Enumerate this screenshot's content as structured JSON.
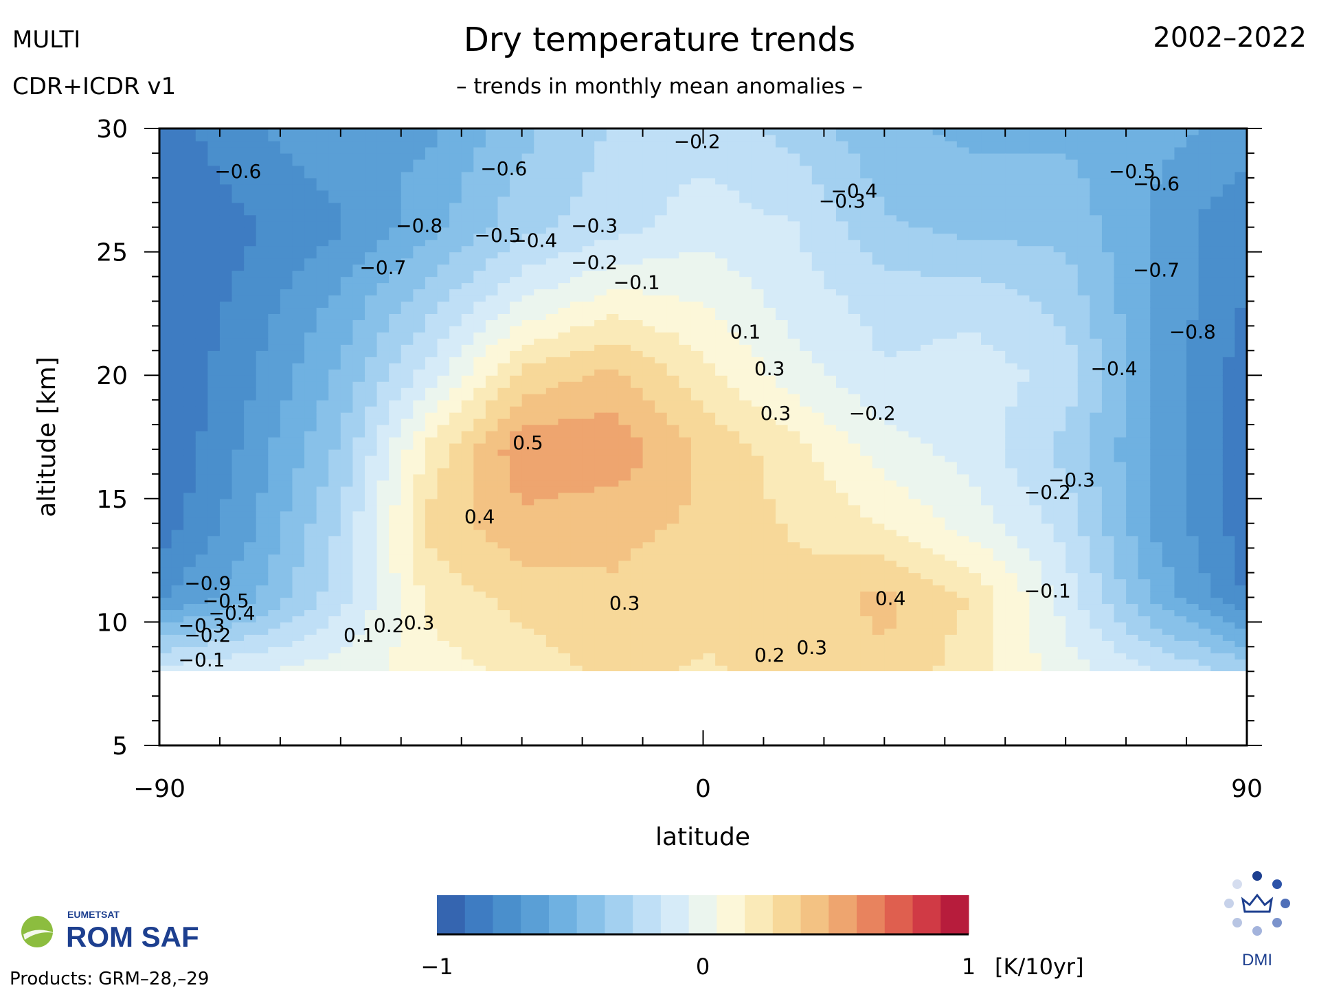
{
  "header": {
    "left_line1": "MULTI",
    "left_line2": "CDR+ICDR v1",
    "title": "Dry temperature trends",
    "subtitle": "– trends in monthly mean anomalies –",
    "period": "2002–2022"
  },
  "footer": {
    "eumetsat": "EUMETSAT",
    "romsaf": "ROM SAF",
    "products": "Products: GRM–28,–29",
    "dmi": "DMI"
  },
  "chart_data": {
    "type": "heatmap",
    "subtype": "filled latitude-altitude contour",
    "title": "Dry temperature trends",
    "subtitle": "– trends in monthly mean anomalies –",
    "xlabel": "latitude",
    "ylabel": "altitude [km]",
    "xlim": [
      -90,
      90
    ],
    "ylim": [
      5,
      30
    ],
    "x_ticks": [
      "−90",
      "0",
      "90"
    ],
    "y_ticks": [
      "5",
      "10",
      "15",
      "20",
      "25",
      "30"
    ],
    "no_data_below_km": 8,
    "colorbar": {
      "min": -1,
      "max": 1,
      "unit": "[K/10yr]",
      "tick_labels": [
        "−1",
        "0",
        "1"
      ],
      "colors": [
        "#3565b0",
        "#3e7cc2",
        "#4a8fcc",
        "#5a9fd6",
        "#6fb1e1",
        "#88c1e9",
        "#a3d0f0",
        "#bfdff6",
        "#d6ebf8",
        "#ebf5ee",
        "#fcf7d9",
        "#faeab8",
        "#f7d899",
        "#f3c283",
        "#eea56f",
        "#e8835e",
        "#df5f4f",
        "#d03a45",
        "#b71c3c"
      ]
    },
    "grid_lat": [
      -90,
      -75,
      -60,
      -45,
      -30,
      -15,
      0,
      15,
      30,
      45,
      60,
      75,
      90
    ],
    "grid_alt": [
      8,
      11,
      14,
      17,
      20,
      23,
      26,
      30
    ],
    "trend_field": [
      [
        -0.1,
        -0.05,
        0.0,
        0.1,
        0.2,
        0.3,
        0.25,
        0.3,
        0.35,
        0.2,
        0.0,
        -0.15,
        -0.3
      ],
      [
        -0.7,
        -0.5,
        -0.2,
        0.2,
        0.3,
        0.35,
        0.3,
        0.3,
        0.4,
        0.25,
        -0.1,
        -0.5,
        -0.8
      ],
      [
        -0.85,
        -0.6,
        -0.25,
        0.3,
        0.45,
        0.4,
        0.35,
        0.25,
        0.15,
        0.0,
        -0.2,
        -0.6,
        -0.85
      ],
      [
        -0.9,
        -0.65,
        -0.35,
        0.2,
        0.55,
        0.55,
        0.35,
        0.2,
        0.0,
        -0.1,
        -0.3,
        -0.6,
        -0.85
      ],
      [
        -0.9,
        -0.7,
        -0.45,
        -0.1,
        0.3,
        0.4,
        0.2,
        0.0,
        -0.15,
        -0.1,
        -0.2,
        -0.6,
        -0.85
      ],
      [
        -0.9,
        -0.75,
        -0.55,
        -0.3,
        -0.05,
        0.1,
        0.05,
        -0.1,
        -0.2,
        -0.2,
        -0.3,
        -0.6,
        -0.8
      ],
      [
        -0.9,
        -0.8,
        -0.7,
        -0.5,
        -0.3,
        -0.2,
        -0.1,
        -0.15,
        -0.35,
        -0.4,
        -0.4,
        -0.6,
        -0.8
      ],
      [
        -0.85,
        -0.7,
        -0.6,
        -0.6,
        -0.4,
        -0.25,
        -0.2,
        -0.3,
        -0.45,
        -0.5,
        -0.5,
        -0.55,
        -0.6
      ]
    ],
    "contour_labels": [
      {
        "text": "−0.6",
        "lat": -77,
        "alt": 28.0
      },
      {
        "text": "−0.8",
        "lat": -47,
        "alt": 25.8
      },
      {
        "text": "−0.7",
        "lat": -53,
        "alt": 24.1
      },
      {
        "text": "−0.6",
        "lat": -33,
        "alt": 28.1
      },
      {
        "text": "−0.5",
        "lat": -34,
        "alt": 25.4
      },
      {
        "text": "−0.4",
        "lat": -28,
        "alt": 25.2
      },
      {
        "text": "−0.3",
        "lat": -18,
        "alt": 25.8
      },
      {
        "text": "−0.2",
        "lat": -18,
        "alt": 24.3
      },
      {
        "text": "−0.1",
        "lat": -11,
        "alt": 23.5
      },
      {
        "text": "−0.2",
        "lat": -1,
        "alt": 29.2
      },
      {
        "text": "−0.4",
        "lat": 25,
        "alt": 27.2
      },
      {
        "text": "−0.3",
        "lat": 23,
        "alt": 26.8
      },
      {
        "text": "0.1",
        "lat": 7,
        "alt": 21.5
      },
      {
        "text": "0.3",
        "lat": 11,
        "alt": 20.0
      },
      {
        "text": "0.3",
        "lat": 12,
        "alt": 18.2
      },
      {
        "text": "−0.2",
        "lat": 28,
        "alt": 18.2
      },
      {
        "text": "0.5",
        "lat": -29,
        "alt": 17.0
      },
      {
        "text": "0.4",
        "lat": -37,
        "alt": 14.0
      },
      {
        "text": "0.3",
        "lat": -13,
        "alt": 10.5
      },
      {
        "text": "0.4",
        "lat": 31,
        "alt": 10.7
      },
      {
        "text": "0.3",
        "lat": 18,
        "alt": 8.7
      },
      {
        "text": "0.2",
        "lat": 11,
        "alt": 8.4
      },
      {
        "text": "0.1",
        "lat": -57,
        "alt": 9.2
      },
      {
        "text": "0.2",
        "lat": -52,
        "alt": 9.6
      },
      {
        "text": "0.3",
        "lat": -47,
        "alt": 9.7
      },
      {
        "text": "−0.1",
        "lat": 57,
        "alt": 11.0
      },
      {
        "text": "−0.2",
        "lat": 57,
        "alt": 15.0
      },
      {
        "text": "−0.3",
        "lat": 61,
        "alt": 15.5
      },
      {
        "text": "−0.4",
        "lat": 68,
        "alt": 20.0
      },
      {
        "text": "−0.5",
        "lat": 71,
        "alt": 28.0
      },
      {
        "text": "−0.6",
        "lat": 75,
        "alt": 27.5
      },
      {
        "text": "−0.7",
        "lat": 75,
        "alt": 24.0
      },
      {
        "text": "−0.8",
        "lat": 81,
        "alt": 21.5
      },
      {
        "text": "−0.9",
        "lat": -82,
        "alt": 11.3
      },
      {
        "text": "−0.5",
        "lat": -79,
        "alt": 10.6
      },
      {
        "text": "−0.4",
        "lat": -78,
        "alt": 10.1
      },
      {
        "text": "−0.3",
        "lat": -83,
        "alt": 9.6
      },
      {
        "text": "−0.2",
        "lat": -82,
        "alt": 9.2
      },
      {
        "text": "−0.1",
        "lat": -83,
        "alt": 8.2
      }
    ]
  }
}
